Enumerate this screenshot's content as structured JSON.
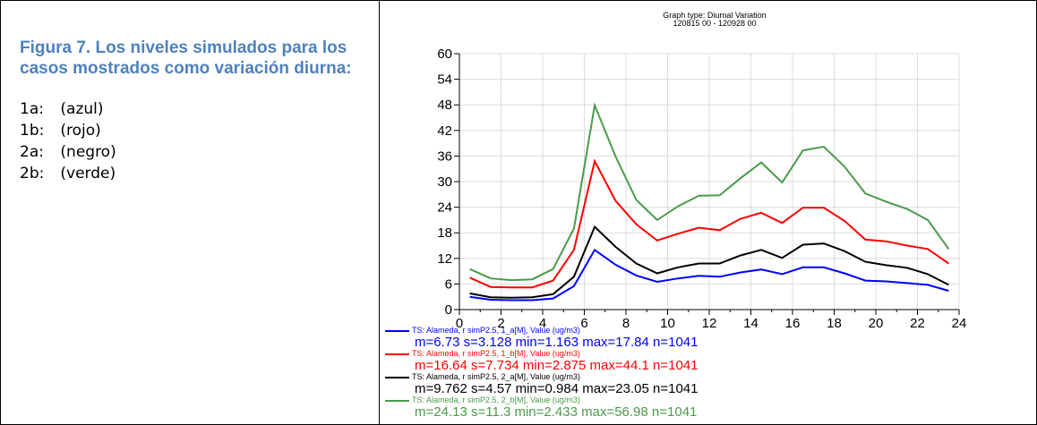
{
  "caption": {
    "title": "Figura 7. Los niveles simulados para los casos mostrados como variación diurna:",
    "items": [
      {
        "code": "1a:",
        "label": "(azul)"
      },
      {
        "code": "1b:",
        "label": "(rojo)"
      },
      {
        "code": "2a:",
        "label": "(negro)"
      },
      {
        "code": "2b:",
        "label": "(verde)"
      }
    ]
  },
  "chart_data": {
    "type": "line",
    "title": "Graph type: Diurnal Variation",
    "subtitle": "120815 00 - 120928 00",
    "xlim": [
      0,
      24
    ],
    "ylim": [
      0,
      60
    ],
    "xticks": [
      0,
      2,
      4,
      6,
      8,
      10,
      12,
      14,
      16,
      18,
      20,
      22,
      24
    ],
    "yticks": [
      0,
      6,
      12,
      18,
      24,
      30,
      36,
      42,
      48,
      54,
      60
    ],
    "grid": true,
    "legend_position": "bottom",
    "x": [
      0.5,
      1.5,
      2.5,
      3.5,
      4.5,
      5.5,
      6.5,
      7.5,
      8.5,
      9.5,
      10.5,
      11.5,
      12.5,
      13.5,
      14.5,
      15.5,
      16.5,
      17.5,
      18.5,
      19.5,
      20.5,
      21.5,
      22.5,
      23.5
    ],
    "series": [
      {
        "name": "TS: Alameda, r simP2.5, 1_a[M], Value (ug/m3)",
        "stats": "m=6.73 s=3.128 min=1.163 max=17.84 n=1041",
        "color": "#0000ff",
        "values": [
          3.0,
          2.3,
          2.2,
          2.2,
          2.6,
          5.5,
          14.0,
          10.5,
          8.0,
          6.5,
          7.3,
          7.9,
          7.7,
          8.7,
          9.4,
          8.3,
          9.9,
          9.9,
          8.5,
          6.8,
          6.6,
          6.2,
          5.8,
          4.4
        ]
      },
      {
        "name": "TS: Alameda, r simP2.5, 1_b[M], Value (ug/m3)",
        "stats": "m=16.64 s=7.734 min=2.875 max=44.1 n=1041",
        "color": "#ff0000",
        "values": [
          7.5,
          5.3,
          5.2,
          5.2,
          6.8,
          14.0,
          34.8,
          25.5,
          20.0,
          16.2,
          17.8,
          19.2,
          18.6,
          21.3,
          22.7,
          20.3,
          23.9,
          23.9,
          20.8,
          16.4,
          16.0,
          15.0,
          14.2,
          10.8
        ]
      },
      {
        "name": "TS: Alameda, r simP2.5, 2_a[M], Value (ug/m3)",
        "stats": "m=9.762 s=4.57 min=0.984 max=23.05 n=1041",
        "color": "#000000",
        "values": [
          3.8,
          2.9,
          2.8,
          2.9,
          3.6,
          7.7,
          19.4,
          14.7,
          10.8,
          8.5,
          9.9,
          10.8,
          10.8,
          12.7,
          14.0,
          12.1,
          15.2,
          15.5,
          13.7,
          11.2,
          10.4,
          9.8,
          8.3,
          5.8
        ]
      },
      {
        "name": "TS: Alameda, r simP2.5, 2_b[M], Value (ug/m3)",
        "stats": "m=24.13 s=11.3 min=2.433 max=56.98 n=1041",
        "color": "#4a9a4a",
        "values": [
          9.5,
          7.3,
          6.9,
          7.1,
          9.5,
          19.0,
          47.9,
          35.9,
          25.7,
          21.0,
          24.2,
          26.7,
          26.8,
          30.8,
          34.5,
          29.8,
          37.3,
          38.2,
          33.5,
          27.2,
          25.3,
          23.6,
          21.0,
          14.2
        ]
      }
    ]
  }
}
